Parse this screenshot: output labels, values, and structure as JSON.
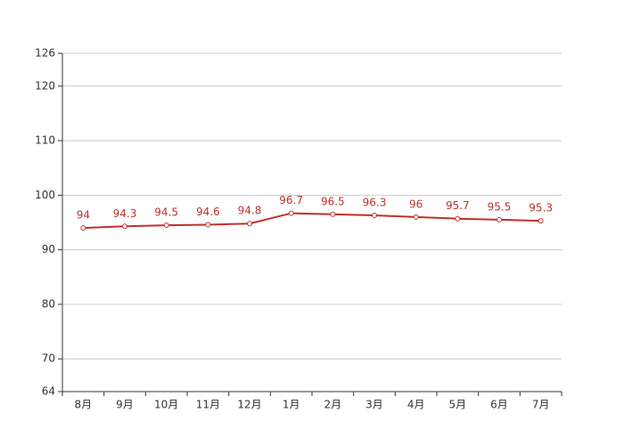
{
  "chart_data": {
    "type": "line",
    "categories": [
      "8月",
      "9月",
      "10月",
      "11月",
      "12月",
      "1月",
      "2月",
      "3月",
      "4月",
      "5月",
      "6月",
      "7月"
    ],
    "series": [
      {
        "color": "#c0302b",
        "values": [
          94,
          94.3,
          94.5,
          94.6,
          94.8,
          96.7,
          96.5,
          96.3,
          96,
          95.7,
          95.5,
          95.3
        ]
      }
    ],
    "ylim": [
      64,
      126
    ],
    "yticks": [
      64,
      70,
      80,
      90,
      100,
      110,
      120,
      126
    ],
    "grid": true
  }
}
